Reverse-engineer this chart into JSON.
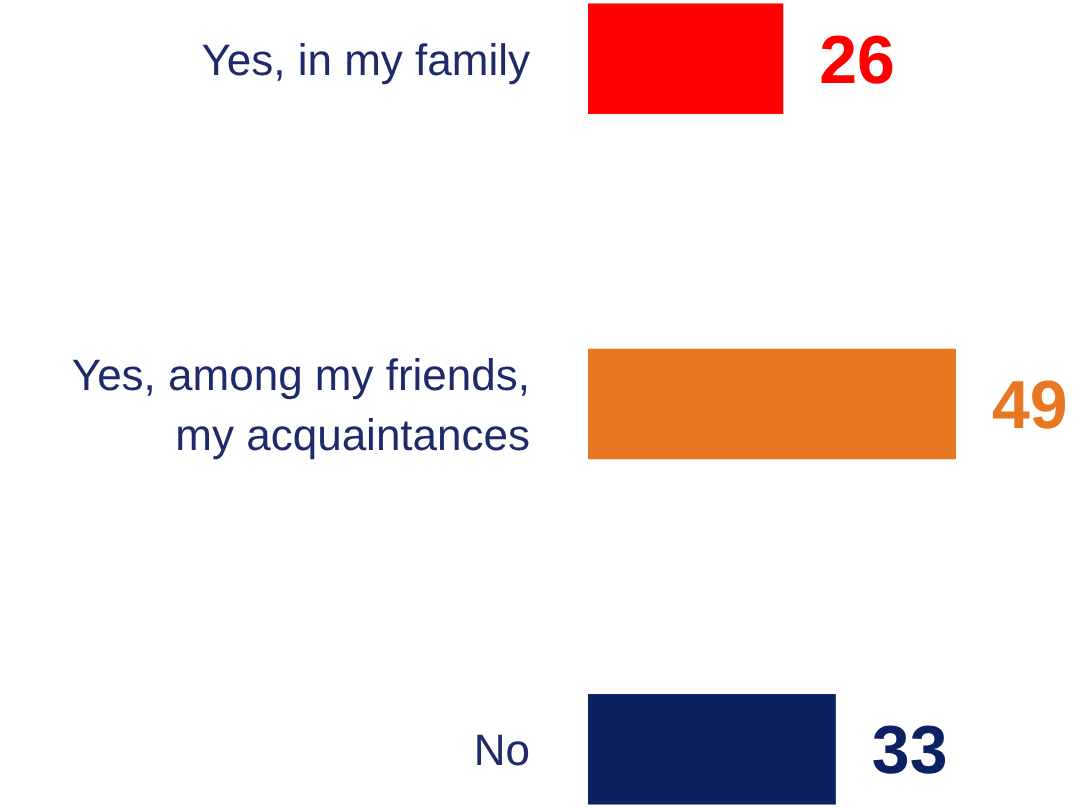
{
  "chart_data": {
    "type": "bar",
    "orientation": "horizontal",
    "categories": [
      "Yes, in my family",
      "Yes, among my friends, my acquaintances",
      "No"
    ],
    "values": [
      26,
      49,
      33
    ],
    "colors": [
      "#ff0000",
      "#e87722",
      "#0b2161"
    ],
    "data_labels": true
  }
}
